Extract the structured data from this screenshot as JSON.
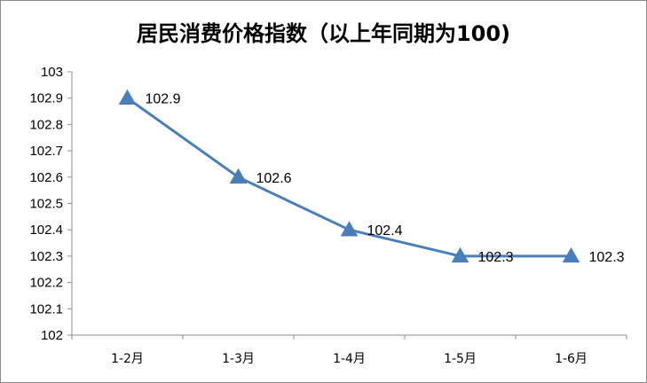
{
  "chart_data": {
    "type": "line",
    "title": "居民消费价格指数（以上年同期为100)",
    "categories": [
      "1-2月",
      "1-3月",
      "1-4月",
      "1-5月",
      "1-6月"
    ],
    "series": [
      {
        "values": [
          102.9,
          102.6,
          102.4,
          102.3,
          102.3
        ]
      }
    ],
    "data_labels": [
      "102.9",
      "102.6",
      "102.4",
      "102.3",
      "102.3"
    ],
    "y_ticks": [
      "102",
      "102.1",
      "102.2",
      "102.3",
      "102.4",
      "102.5",
      "102.6",
      "102.7",
      "102.8",
      "102.9",
      "103"
    ],
    "ylim": [
      102,
      103
    ],
    "xlabel": "",
    "ylabel": "",
    "grid": false,
    "marker": "triangle",
    "line_color": "#4a7ebb"
  }
}
